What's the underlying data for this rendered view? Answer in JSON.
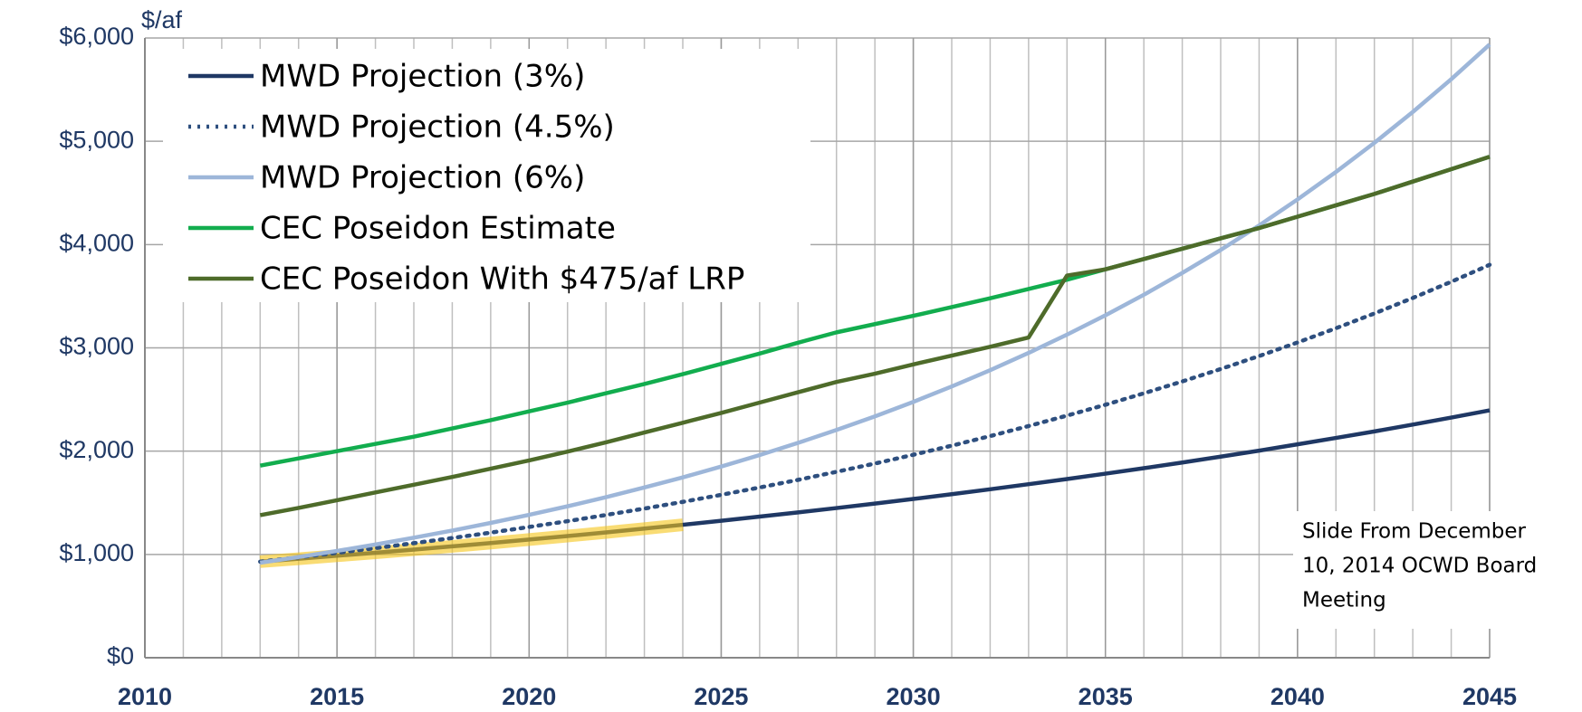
{
  "chart_data": {
    "type": "line",
    "y_axis_label": "$/af",
    "annotation": [
      "Slide From December",
      "10, 2014 OCWD Board",
      "Meeting"
    ],
    "x": [
      2013,
      2014,
      2015,
      2016,
      2017,
      2018,
      2019,
      2020,
      2021,
      2022,
      2023,
      2024,
      2025,
      2026,
      2027,
      2028,
      2029,
      2030,
      2031,
      2032,
      2033,
      2034,
      2035,
      2036,
      2037,
      2038,
      2039,
      2040,
      2041,
      2042,
      2043,
      2044,
      2045
    ],
    "series": [
      {
        "name": "MWD Projection (3%)",
        "color": "#1f3864",
        "style": "solid",
        "values": [
          930,
          958,
          987,
          1016,
          1047,
          1078,
          1110,
          1144,
          1178,
          1213,
          1250,
          1287,
          1326,
          1366,
          1407,
          1449,
          1492,
          1537,
          1583,
          1631,
          1680,
          1730,
          1782,
          1835,
          1890,
          1947,
          2005,
          2066,
          2128,
          2191,
          2257,
          2325,
          2395
        ]
      },
      {
        "name": "MWD Projection (4.5%)",
        "color": "#2e4f7f",
        "style": "dotted",
        "values": [
          930,
          972,
          1016,
          1061,
          1109,
          1159,
          1211,
          1266,
          1322,
          1382,
          1444,
          1509,
          1577,
          1648,
          1722,
          1800,
          1880,
          1965,
          2053,
          2146,
          2243,
          2344,
          2449,
          2560,
          2675,
          2795,
          2921,
          3052,
          3190,
          3333,
          3483,
          3640,
          3804
        ]
      },
      {
        "name": "MWD Projection (6%)",
        "color": "#9db6d9",
        "style": "solid",
        "values": [
          920,
          975,
          1034,
          1096,
          1162,
          1231,
          1305,
          1383,
          1466,
          1554,
          1648,
          1746,
          1851,
          1962,
          2080,
          2205,
          2337,
          2477,
          2626,
          2784,
          2951,
          3128,
          3315,
          3514,
          3725,
          3948,
          4185,
          4437,
          4703,
          4985,
          5284,
          5601,
          5937
        ]
      },
      {
        "name": "CEC Poseidon Estimate",
        "color": "#12ad4e",
        "style": "solid",
        "values": [
          1860,
          1930,
          2000,
          2070,
          2140,
          2220,
          2300,
          2385,
          2470,
          2560,
          2650,
          2745,
          2845,
          2945,
          3050,
          3150,
          3230,
          3310,
          3395,
          3480,
          3570,
          3660,
          3760,
          3860,
          3960,
          4060,
          4160,
          4270,
          4380,
          4490,
          4610,
          4730,
          4850
        ]
      },
      {
        "name": "CEC Poseidon With $475/af LRP",
        "color": "#4e6b2a",
        "style": "solid",
        "values": [
          1380,
          1450,
          1525,
          1600,
          1675,
          1750,
          1830,
          1910,
          1995,
          2085,
          2180,
          2275,
          2370,
          2470,
          2570,
          2670,
          2750,
          2840,
          2925,
          3010,
          3100,
          3700,
          3760,
          3860,
          3960,
          4060,
          4160,
          4270,
          4380,
          4490,
          4610,
          4730,
          4850
        ]
      }
    ],
    "highlight": {
      "series": 0,
      "from": 0,
      "to": 11,
      "color": "#f5c518"
    },
    "xlim": [
      2010,
      2045
    ],
    "xticks": [
      2010,
      2015,
      2020,
      2025,
      2030,
      2035,
      2040,
      2045
    ],
    "ylim": [
      0,
      6000
    ],
    "yticks": [
      {
        "value": 0,
        "label": "$0"
      },
      {
        "value": 1000,
        "label": "$1,000"
      },
      {
        "value": 2000,
        "label": "$2,000"
      },
      {
        "value": 3000,
        "label": "$3,000"
      },
      {
        "value": 4000,
        "label": "$4,000"
      },
      {
        "value": 5000,
        "label": "$5,000"
      },
      {
        "value": 6000,
        "label": "$6,000"
      }
    ],
    "grid": true,
    "minor_x_grid_step": 1,
    "legend": "upper left"
  }
}
